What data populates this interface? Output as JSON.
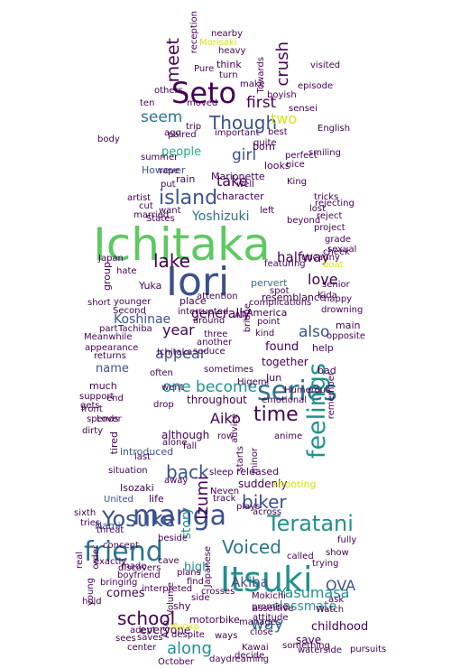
{
  "wordcloud": {
    "palette": {
      "dark_purple": "#440154",
      "indigo": "#3b528b",
      "blue": "#2c728e",
      "teal": "#21918c",
      "green": "#27ad81",
      "lime": "#5ec962",
      "yellow": "#d8e219"
    },
    "words": [
      {
        "text": "Ichitaka"
      },
      {
        "text": "Iori"
      },
      {
        "text": "Itsuki"
      },
      {
        "text": "Seto"
      },
      {
        "text": "manga"
      },
      {
        "text": "friend"
      },
      {
        "text": "series"
      },
      {
        "text": "feelings"
      },
      {
        "text": "Yosuke"
      },
      {
        "text": "Teratani"
      },
      {
        "text": "island"
      },
      {
        "text": "time"
      },
      {
        "text": "Though"
      },
      {
        "text": "lake"
      },
      {
        "text": "Voiced"
      },
      {
        "text": "school"
      },
      {
        "text": "biker"
      },
      {
        "text": "Yasumasa"
      },
      {
        "text": "one become"
      },
      {
        "text": "back"
      },
      {
        "text": "along"
      },
      {
        "text": "way"
      },
      {
        "text": "meet"
      },
      {
        "text": "seem"
      },
      {
        "text": "girl"
      },
      {
        "text": "first"
      },
      {
        "text": "crush"
      },
      {
        "text": "love"
      },
      {
        "text": "Yoshizuki"
      },
      {
        "text": "also"
      },
      {
        "text": "Aiko"
      },
      {
        "text": "Izumi"
      },
      {
        "text": "Akiba"
      },
      {
        "text": "OVA"
      },
      {
        "text": "take"
      },
      {
        "text": "year"
      },
      {
        "text": "appear"
      },
      {
        "text": "halfway"
      },
      {
        "text": "classmate"
      },
      {
        "text": "Koshinae"
      },
      {
        "text": "generally"
      },
      {
        "text": "people"
      },
      {
        "text": "two"
      },
      {
        "text": "story"
      },
      {
        "text": "high"
      },
      {
        "text": "childhood"
      },
      {
        "text": "found"
      },
      {
        "text": "together"
      },
      {
        "text": "name"
      },
      {
        "text": "comes"
      },
      {
        "text": "everyone"
      },
      {
        "text": "save"
      },
      {
        "text": "Marionette"
      },
      {
        "text": "island"
      },
      {
        "text": "character"
      },
      {
        "text": "pervert"
      },
      {
        "text": "However"
      },
      {
        "text": "America"
      },
      {
        "text": "although"
      },
      {
        "text": "introduced"
      },
      {
        "text": "Isozaki"
      },
      {
        "text": "manages"
      },
      {
        "text": "motorbike"
      },
      {
        "text": "waterside"
      },
      {
        "text": "October"
      },
      {
        "text": "shy"
      },
      {
        "text": "Nami"
      },
      {
        "text": "exactly"
      },
      {
        "text": "life"
      },
      {
        "text": "United"
      },
      {
        "text": "Aso"
      },
      {
        "text": "boyfriend"
      },
      {
        "text": "throughout"
      },
      {
        "text": "suddenly"
      },
      {
        "text": "released"
      },
      {
        "text": "shooting"
      },
      {
        "text": "plays"
      },
      {
        "text": "across"
      },
      {
        "text": "Jun"
      },
      {
        "text": "bad"
      },
      {
        "text": "help"
      },
      {
        "text": "main"
      },
      {
        "text": "ago"
      },
      {
        "text": "artist"
      },
      {
        "text": "want"
      },
      {
        "text": "States"
      },
      {
        "text": "King"
      },
      {
        "text": "left"
      },
      {
        "text": "born"
      },
      {
        "text": "looks"
      },
      {
        "text": "best"
      },
      {
        "text": "moved"
      },
      {
        "text": "paired"
      },
      {
        "text": "trip"
      },
      {
        "text": "ten"
      },
      {
        "text": "others"
      },
      {
        "text": "think"
      },
      {
        "text": "nearby"
      },
      {
        "text": "Morisaki"
      },
      {
        "text": "heavy"
      },
      {
        "text": "Pure"
      },
      {
        "text": "turn"
      },
      {
        "text": "make"
      },
      {
        "text": "important"
      },
      {
        "text": "rain"
      },
      {
        "text": "well"
      },
      {
        "text": "resemblance"
      },
      {
        "text": "place"
      },
      {
        "text": "Yuka"
      },
      {
        "text": "group"
      },
      {
        "text": "younger"
      },
      {
        "text": "part"
      },
      {
        "text": "Tachiba"
      },
      {
        "text": "appearance"
      },
      {
        "text": "returns"
      },
      {
        "text": "much"
      },
      {
        "text": "end"
      },
      {
        "text": "front"
      },
      {
        "text": "spends"
      },
      {
        "text": "tired"
      },
      {
        "text": "drop"
      },
      {
        "text": "fall"
      },
      {
        "text": "alone"
      },
      {
        "text": "row"
      },
      {
        "text": "often"
      },
      {
        "text": "went"
      },
      {
        "text": "another"
      },
      {
        "text": "around"
      },
      {
        "text": "three"
      },
      {
        "text": "kind"
      },
      {
        "text": "point"
      },
      {
        "text": "opposite"
      },
      {
        "text": "emotional"
      },
      {
        "text": "Humerous"
      },
      {
        "text": "remember"
      },
      {
        "text": "sleep"
      },
      {
        "text": "away"
      },
      {
        "text": "situation"
      },
      {
        "text": "last"
      },
      {
        "text": "Neven"
      },
      {
        "text": "track"
      },
      {
        "text": "Mokichi"
      },
      {
        "text": "called"
      },
      {
        "text": "ask"
      },
      {
        "text": "close"
      },
      {
        "text": "side"
      },
      {
        "text": "find"
      },
      {
        "text": "promise"
      },
      {
        "text": "center"
      },
      {
        "text": "sees"
      },
      {
        "text": "Myoko"
      },
      {
        "text": "cave"
      },
      {
        "text": "plans"
      },
      {
        "text": "made"
      },
      {
        "text": "trying"
      },
      {
        "text": "show"
      },
      {
        "text": "fully"
      },
      {
        "text": "Watch"
      },
      {
        "text": "decide"
      },
      {
        "text": "something"
      },
      {
        "text": "complications"
      },
      {
        "text": "drowning"
      },
      {
        "text": "grade"
      },
      {
        "text": "Kida"
      },
      {
        "text": "boat"
      },
      {
        "text": "project"
      },
      {
        "text": "spot"
      },
      {
        "text": "sensei"
      },
      {
        "text": "Japan"
      },
      {
        "text": "hate"
      },
      {
        "text": "short"
      },
      {
        "text": "Second"
      },
      {
        "text": "Meanwhile"
      },
      {
        "text": "real"
      },
      {
        "text": "young"
      },
      {
        "text": "order"
      },
      {
        "text": "hold"
      },
      {
        "text": "beside"
      },
      {
        "text": "rape"
      },
      {
        "text": "body"
      },
      {
        "text": "quite"
      },
      {
        "text": "put"
      },
      {
        "text": "bridge"
      },
      {
        "text": "advice"
      },
      {
        "text": "anime"
      },
      {
        "text": "minor"
      },
      {
        "text": "starts"
      },
      {
        "text": "Higemi"
      },
      {
        "text": "assertive"
      },
      {
        "text": "attitude"
      },
      {
        "text": "Volume"
      },
      {
        "text": "Japanese"
      },
      {
        "text": "Ichitaka"
      },
      {
        "text": "sometimes"
      },
      {
        "text": "seduce"
      },
      {
        "text": "interrupted"
      },
      {
        "text": "attention"
      },
      {
        "text": "AT"
      },
      {
        "text": "featuring"
      },
      {
        "text": "episode"
      },
      {
        "text": "English"
      },
      {
        "text": "smiling"
      },
      {
        "text": "visited"
      },
      {
        "text": "reception"
      },
      {
        "text": "Towards"
      },
      {
        "text": "boyish"
      },
      {
        "text": "reject"
      },
      {
        "text": "sexual"
      },
      {
        "text": "uncanny"
      },
      {
        "text": "senior"
      },
      {
        "text": "happy"
      },
      {
        "text": "Lover"
      },
      {
        "text": "support"
      },
      {
        "text": "gets"
      },
      {
        "text": "dirty"
      },
      {
        "text": "sixth"
      },
      {
        "text": "tries"
      },
      {
        "text": "threat"
      },
      {
        "text": "discovers"
      },
      {
        "text": "concept"
      },
      {
        "text": "bringing"
      },
      {
        "text": "interpreted"
      },
      {
        "text": "crosses"
      },
      {
        "text": "despite"
      },
      {
        "text": "ways"
      },
      {
        "text": "pursuits"
      },
      {
        "text": "daydreaming"
      },
      {
        "text": "saves"
      },
      {
        "text": "adept"
      },
      {
        "text": "Kawai"
      },
      {
        "text": "summer"
      },
      {
        "text": "perfect"
      },
      {
        "text": "nice"
      },
      {
        "text": "rejecting"
      },
      {
        "text": "lost"
      },
      {
        "text": "beyond"
      },
      {
        "text": "tricks"
      },
      {
        "text": "cheek"
      },
      {
        "text": "married"
      },
      {
        "text": "cut"
      }
    ]
  }
}
